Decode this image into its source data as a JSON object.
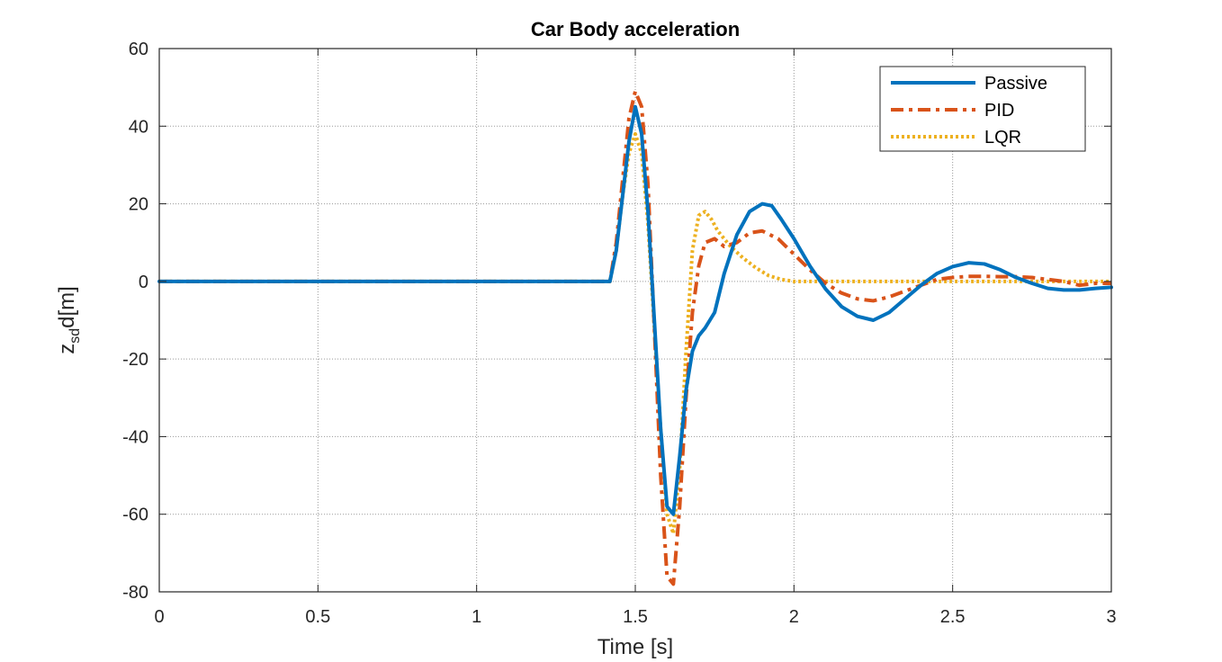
{
  "chart_data": {
    "type": "line",
    "title": "Car Body acceleration",
    "xlabel": "Time [s]",
    "ylabel_main": "z",
    "ylabel_sub": "sd",
    "ylabel_tail": "d[m]",
    "xlim": [
      0,
      3
    ],
    "ylim": [
      -80,
      60
    ],
    "xticks": [
      0,
      0.5,
      1,
      1.5,
      2,
      2.5,
      3
    ],
    "xtick_labels": [
      "0",
      "0.5",
      "1",
      "1.5",
      "2",
      "2.5",
      "3"
    ],
    "yticks": [
      -80,
      -60,
      -40,
      -20,
      0,
      20,
      40,
      60
    ],
    "ytick_labels": [
      "-80",
      "-60",
      "-40",
      "-20",
      "0",
      "20",
      "40",
      "60"
    ],
    "grid": true,
    "legend_position": "top-right",
    "series": [
      {
        "name": "Passive",
        "color": "#0072BD",
        "style": "solid",
        "x": [
          0,
          1.42,
          1.44,
          1.46,
          1.48,
          1.5,
          1.52,
          1.54,
          1.56,
          1.58,
          1.6,
          1.62,
          1.64,
          1.66,
          1.68,
          1.7,
          1.72,
          1.75,
          1.78,
          1.82,
          1.86,
          1.9,
          1.93,
          1.96,
          2.0,
          2.05,
          2.1,
          2.15,
          2.2,
          2.25,
          2.3,
          2.35,
          2.4,
          2.45,
          2.5,
          2.55,
          2.6,
          2.65,
          2.7,
          2.75,
          2.8,
          2.85,
          2.9,
          2.95,
          3.0
        ],
        "y": [
          0,
          0,
          8,
          22,
          36,
          45,
          38,
          18,
          -10,
          -38,
          -58,
          -60,
          -45,
          -28,
          -18,
          -14,
          -12,
          -8,
          2,
          12,
          18,
          20,
          19.5,
          16,
          11,
          4,
          -2,
          -6.5,
          -9,
          -10,
          -8,
          -4.5,
          -1,
          2,
          3.8,
          4.8,
          4.5,
          3,
          1,
          -0.5,
          -1.8,
          -2.2,
          -2.2,
          -1.8,
          -1.5
        ]
      },
      {
        "name": "PID",
        "color": "#D95319",
        "style": "dashdot",
        "x": [
          0,
          1.42,
          1.44,
          1.46,
          1.48,
          1.5,
          1.52,
          1.54,
          1.56,
          1.58,
          1.6,
          1.62,
          1.64,
          1.66,
          1.68,
          1.7,
          1.72,
          1.75,
          1.78,
          1.82,
          1.86,
          1.9,
          1.95,
          2.0,
          2.05,
          2.1,
          2.15,
          2.2,
          2.25,
          2.3,
          2.35,
          2.4,
          2.45,
          2.5,
          2.55,
          2.6,
          2.65,
          2.7,
          2.75,
          2.8,
          2.85,
          2.9,
          2.95,
          3.0
        ],
        "y": [
          0,
          0,
          10,
          26,
          42,
          49,
          45,
          25,
          -12,
          -50,
          -76,
          -78,
          -58,
          -30,
          -8,
          4,
          10,
          11,
          9,
          10,
          12.5,
          13,
          11,
          7,
          3,
          -0.5,
          -3,
          -4.5,
          -5,
          -4,
          -2.5,
          -1,
          0.5,
          1,
          1.3,
          1.3,
          1.2,
          1.2,
          1,
          0.5,
          0,
          -1,
          -0.5,
          -0.5
        ]
      },
      {
        "name": "LQR",
        "color": "#EDB120",
        "style": "dotted",
        "x": [
          0,
          1.42,
          1.44,
          1.46,
          1.48,
          1.5,
          1.52,
          1.54,
          1.56,
          1.58,
          1.6,
          1.62,
          1.64,
          1.66,
          1.68,
          1.7,
          1.72,
          1.74,
          1.76,
          1.8,
          1.84,
          1.88,
          1.92,
          1.96,
          2.0,
          2.1,
          2.2,
          3.0
        ],
        "y": [
          0,
          0,
          8,
          22,
          33,
          38,
          33,
          15,
          -12,
          -38,
          -60,
          -65,
          -48,
          -18,
          8,
          17,
          18,
          16,
          13,
          9,
          6,
          3.5,
          1.5,
          0.5,
          0,
          0,
          0,
          0
        ]
      }
    ]
  }
}
